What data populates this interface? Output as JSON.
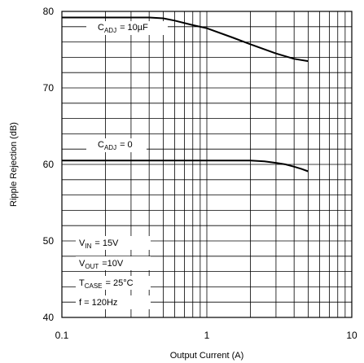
{
  "chart_data": {
    "type": "line",
    "title": "",
    "xlabel": "Output Current  (A)",
    "ylabel": "Ripple Rejection  (dB)",
    "xscale": "log",
    "xlim": [
      0.1,
      10
    ],
    "ylim": [
      40,
      80
    ],
    "grid": true,
    "x_tick_labels": [
      "0.1",
      "1",
      "10"
    ],
    "y_tick_labels": [
      "40",
      "50",
      "60",
      "70",
      "80"
    ],
    "series": [
      {
        "name": "C_ADJ = 10µF",
        "label_main": "C",
        "label_sub": "ADJ",
        "label_tail": "= 10µF",
        "x": [
          0.1,
          0.2,
          0.3,
          0.4,
          0.5,
          0.6,
          0.8,
          1.0,
          1.5,
          2.0,
          3.0,
          4.0,
          5.0
        ],
        "y": [
          79.2,
          79.2,
          79.2,
          79.2,
          79.1,
          78.8,
          78.2,
          77.8,
          76.6,
          75.7,
          74.5,
          73.8,
          73.5
        ]
      },
      {
        "name": "C_ADJ = 0",
        "label_main": "C",
        "label_sub": "ADJ",
        "label_tail": "= 0",
        "x": [
          0.1,
          0.5,
          1.0,
          2.0,
          2.5,
          3.0,
          3.5,
          4.0,
          4.5,
          5.0
        ],
        "y": [
          60.5,
          60.5,
          60.5,
          60.5,
          60.4,
          60.2,
          60.0,
          59.7,
          59.4,
          59.1
        ]
      }
    ],
    "conditions": [
      {
        "main": "V",
        "sub": "IN",
        "tail": "= 15V"
      },
      {
        "main": "V",
        "sub": "OUT",
        "tail": "=10V"
      },
      {
        "main": "T",
        "sub": "CASE",
        "tail": "= 25°C"
      },
      {
        "main": "f = 120Hz",
        "sub": "",
        "tail": ""
      }
    ]
  }
}
